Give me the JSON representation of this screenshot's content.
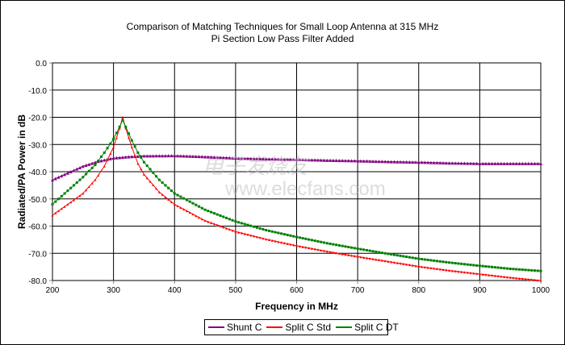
{
  "chart_data": {
    "type": "line",
    "title": "Comparison of Matching Techniques for Small Loop Antenna at 315 MHz",
    "subtitle": "Pi Section Low Pass Filter Added",
    "xlabel": "Frequency in MHz",
    "ylabel": "Radiated/PA Power in dB",
    "xlim": [
      200,
      1000
    ],
    "ylim": [
      -80,
      0
    ],
    "xticks": [
      "200",
      "300",
      "400",
      "500",
      "600",
      "700",
      "800",
      "900",
      "1000"
    ],
    "yticks": [
      "0.0",
      "-10.0",
      "-20.0",
      "-30.0",
      "-40.0",
      "-50.0",
      "-60.0",
      "-70.0",
      "-80.0"
    ],
    "grid": true,
    "legend_position": "bottom",
    "series": [
      {
        "name": "Shunt C",
        "color": "#800080",
        "x": [
          200,
          225,
          250,
          275,
          300,
          325,
          350,
          400,
          450,
          500,
          550,
          600,
          650,
          700,
          750,
          800,
          850,
          900,
          950,
          1000
        ],
        "y": [
          -43,
          -40.5,
          -38,
          -36.2,
          -35,
          -34.5,
          -34.2,
          -34.1,
          -34.5,
          -35,
          -35.3,
          -35.5,
          -35.8,
          -36,
          -36.3,
          -36.5,
          -36.8,
          -37,
          -37,
          -37
        ]
      },
      {
        "name": "Split C Std",
        "color": "#ff0000",
        "x": [
          200,
          225,
          250,
          270,
          285,
          300,
          310,
          315,
          320,
          330,
          340,
          350,
          375,
          400,
          450,
          500,
          550,
          600,
          650,
          700,
          750,
          800,
          850,
          900,
          950,
          1000
        ],
        "y": [
          -56,
          -52,
          -48,
          -43,
          -38,
          -31,
          -24,
          -20,
          -24,
          -31,
          -37,
          -41,
          -47.5,
          -52,
          -58,
          -62,
          -64.8,
          -67.2,
          -69.3,
          -71.2,
          -73,
          -74.8,
          -76.3,
          -77.6,
          -78.9,
          -80
        ]
      },
      {
        "name": "Split C DT",
        "color": "#008000",
        "x": [
          200,
          225,
          250,
          270,
          285,
          300,
          310,
          315,
          320,
          330,
          340,
          350,
          375,
          400,
          450,
          500,
          550,
          600,
          650,
          700,
          750,
          800,
          850,
          900,
          950,
          1000
        ],
        "y": [
          -52,
          -47,
          -42,
          -37.5,
          -33,
          -28,
          -23.5,
          -21,
          -23.5,
          -28.5,
          -33,
          -36.5,
          -43,
          -48,
          -54,
          -58.3,
          -61.5,
          -64,
          -66.3,
          -68.3,
          -70.2,
          -72,
          -73.4,
          -74.6,
          -75.7,
          -76.5
        ]
      }
    ]
  },
  "watermark": {
    "line1": "电子发烧友",
    "line2": "www.elecfans.com"
  }
}
